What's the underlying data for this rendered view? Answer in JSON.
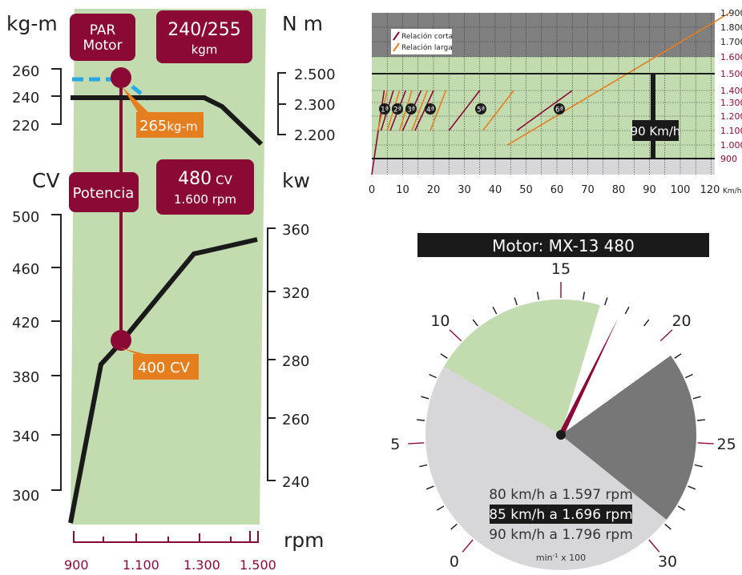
{
  "colors": {
    "maroon": "#8a0a35",
    "green": "#c2dcb0",
    "orange": "#e57e1e",
    "blue": "#27a9e1",
    "darkgray": "#777777",
    "lightgray": "#d7d7d9",
    "black": "#1a1a1a"
  },
  "left_chart": {
    "torque_axis_left": {
      "title": "kg-m",
      "ticks": [
        "260",
        "240",
        "220"
      ]
    },
    "torque_axis_right": {
      "title": "N m",
      "ticks": [
        "2.500",
        "2.300",
        "2.200"
      ]
    },
    "power_axis_left": {
      "title": "CV",
      "ticks": [
        "500",
        "460",
        "420",
        "380",
        "340",
        "300"
      ]
    },
    "power_axis_right": {
      "title": "kw",
      "ticks": [
        "360",
        "320",
        "280",
        "260",
        "240"
      ]
    },
    "rpm_axis": {
      "title": "rpm",
      "ticks": [
        "900",
        "1.100",
        "1.300",
        "1.500"
      ]
    },
    "par_box": {
      "line1": "PAR",
      "line2": "Motor"
    },
    "par_value_box": {
      "line1": "240/255",
      "line2": "kgm"
    },
    "potencia_box": {
      "label": "Potencia"
    },
    "potencia_value_box": {
      "line1": "480",
      "unit": "CV",
      "line2": "1.600 rpm"
    },
    "torque_callout": {
      "value": "265",
      "unit": "kg-m"
    },
    "power_callout": {
      "text": "400 CV"
    }
  },
  "top_right_chart": {
    "legend": [
      "Relación corta",
      "Relación larga"
    ],
    "rpm_ticks": [
      "1.900",
      "1.800",
      "1.700",
      "1.600",
      "1.500",
      "1.400",
      "1.300",
      "1.200",
      "1.100",
      "1.000",
      "900"
    ],
    "speed_ticks": [
      "0",
      "10",
      "20",
      "30",
      "40",
      "50",
      "60",
      "70",
      "80",
      "90",
      "100",
      "120"
    ],
    "speed_unit": "Km/h",
    "gear_labels": [
      "1ª",
      "2ª",
      "3ª",
      "4ª",
      "5ª",
      "6ª"
    ],
    "marker_label": "90 Km/h"
  },
  "gauge": {
    "title": "Motor: MX-13 480",
    "scale_labels": [
      "0",
      "5",
      "10",
      "15",
      "20",
      "25",
      "30"
    ],
    "lines": [
      "80 km/h a 1.597 rpm",
      "85 km/h a 1.696 rpm",
      "90 km/h a 1.796 rpm"
    ],
    "unit_base": "min",
    "unit_sup": "-1",
    "unit_rest": " x 100"
  },
  "chart_data": [
    {
      "type": "line",
      "xlabel": "rpm",
      "x_ticks": [
        900,
        1100,
        1300,
        1500
      ],
      "series": [
        {
          "name": "PAR Motor",
          "unit": "kg-m",
          "x": [
            900,
            1000,
            1100,
            1200,
            1300,
            1350,
            1500
          ],
          "y": [
            238,
            238,
            238,
            238,
            238,
            234,
            223
          ]
        },
        {
          "name": "Potencia",
          "unit": "CV",
          "x": [
            900,
            990,
            1050,
            1150,
            1250,
            1300,
            1500
          ],
          "y": [
            280,
            390,
            405,
            430,
            455,
            470,
            480
          ]
        }
      ],
      "annotations": [
        {
          "text": "265 kg-m",
          "x": 1050,
          "y": 255
        },
        {
          "text": "400 CV",
          "x": 1050,
          "y": 405
        }
      ]
    },
    {
      "type": "line",
      "xlabel": "Km/h",
      "xlim": [
        0,
        120
      ],
      "ylim": [
        800,
        1900
      ],
      "series": [
        {
          "name": "Relación corta",
          "segments": [
            [
              [
                0,
                800
              ],
              [
                4,
                1400
              ]
            ],
            [
              [
                3,
                1100
              ],
              [
                7,
                1400
              ]
            ],
            [
              [
                6,
                1100
              ],
              [
                11,
                1400
              ]
            ],
            [
              [
                10,
                1100
              ],
              [
                16,
                1400
              ]
            ],
            [
              [
                14,
                1100
              ],
              [
                20,
                1400
              ]
            ],
            [
              [
                25,
                1100
              ],
              [
                35,
                1400
              ]
            ],
            [
              [
                47,
                1100
              ],
              [
                65,
                1400
              ]
            ]
          ]
        },
        {
          "name": "Relación larga",
          "segments": [
            [
              [
                2,
                1100
              ],
              [
                5,
                1400
              ]
            ],
            [
              [
                5,
                1100
              ],
              [
                9,
                1400
              ]
            ],
            [
              [
                9,
                1100
              ],
              [
                13,
                1400
              ]
            ],
            [
              [
                13,
                1100
              ],
              [
                18,
                1400
              ]
            ],
            [
              [
                19,
                1100
              ],
              [
                24,
                1400
              ]
            ],
            [
              [
                36,
                1100
              ],
              [
                46,
                1400
              ]
            ],
            [
              [
                44,
                1000
              ],
              [
                116,
                1900
              ]
            ]
          ]
        }
      ],
      "vertical_marker": {
        "x": 90,
        "label": "90 Km/h"
      }
    }
  ]
}
